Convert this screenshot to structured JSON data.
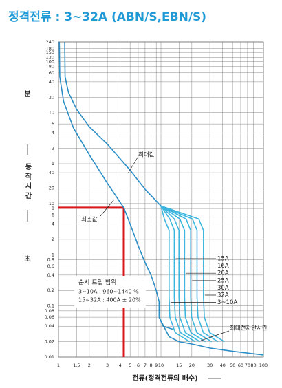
{
  "chart_data": {
    "type": "line",
    "title": "정격전류 : 3~32A (ABN/S,EBN/S)",
    "x_label": "전류(정격전류의 배수)",
    "side_labels": {
      "minutes": "분",
      "time": "동작시간",
      "seconds": "초"
    },
    "trip_box": {
      "title": "순시 트립 범위",
      "lines": [
        "3~10A : 960~1440 %",
        "15~32A : 400A ± 20%"
      ]
    },
    "log_x": true,
    "log_y": true,
    "grid": true,
    "xlim": [
      1,
      100
    ],
    "ylim": [
      0.01,
      14400
    ],
    "xticks": [
      1,
      1.5,
      2,
      3,
      4,
      5,
      6,
      7,
      8,
      9,
      10,
      15,
      20,
      30,
      40,
      50,
      60,
      70,
      80,
      100
    ],
    "yticks": [
      {
        "value": 14400,
        "label": "240"
      },
      {
        "value": 10800,
        "label": "180"
      },
      {
        "value": 9000,
        "label": "150"
      },
      {
        "value": 7200,
        "label": "120"
      },
      {
        "value": 6000,
        "label": "100"
      },
      {
        "value": 4800,
        "label": "80"
      },
      {
        "value": 3600,
        "label": "60"
      },
      {
        "value": 2400,
        "label": "40"
      },
      {
        "value": 1200,
        "label": "20"
      },
      {
        "value": 600,
        "label": "10"
      },
      {
        "value": 360,
        "label": "6"
      },
      {
        "value": 240,
        "label": "4"
      },
      {
        "value": 120,
        "label": "2"
      },
      {
        "value": 60,
        "label": "1"
      },
      40,
      20,
      10,
      8,
      6,
      4,
      2,
      1,
      0.8,
      0.6,
      0.4,
      0.2,
      0.1,
      0.08,
      0.06,
      0.04,
      0.02,
      0.01
    ],
    "highlight": {
      "x": 4.34,
      "y": 8.3,
      "color": "#d7191c"
    },
    "series": [
      {
        "name": "최대값",
        "color": "#2b8ec6",
        "x": [
          1.15,
          1.16,
          1.25,
          1.5,
          2,
          3,
          5,
          7,
          10
        ],
        "values": [
          14400,
          3000,
          1500,
          700,
          316,
          145,
          45,
          19,
          9
        ]
      },
      {
        "name": "최소값",
        "color": "#2b8ec6",
        "x": [
          1.02,
          1.03,
          1.12,
          1.4,
          2,
          3,
          4.34,
          5,
          6,
          7,
          8,
          9,
          9.6,
          9.6,
          10.5,
          13
        ],
        "values": [
          14400,
          3000,
          1000,
          300,
          90,
          25,
          8.3,
          4,
          1.5,
          0.7,
          0.4,
          0.2,
          0.12,
          0.06,
          0.04,
          0.035
        ]
      },
      {
        "name": "최대전차단시간",
        "color": "#2b8ec6",
        "x": [
          9.6,
          12,
          15,
          20,
          30,
          50,
          100
        ],
        "values": [
          0.06,
          0.025,
          0.02,
          0.018,
          0.015,
          0.013,
          0.011
        ]
      },
      {
        "name": "15A",
        "color": "#3cb6df",
        "x": [
          10,
          12.2,
          13.5,
          13.5,
          13.8,
          15.5,
          21.6
        ],
        "values": [
          9,
          5,
          3,
          0.15,
          0.06,
          0.03,
          0.02
        ]
      },
      {
        "name": "16A",
        "color": "#3cb6df",
        "x": [
          10,
          13.5,
          15,
          15,
          15.3,
          17.3,
          24
        ],
        "values": [
          9,
          5,
          3,
          0.15,
          0.06,
          0.03,
          0.02
        ]
      },
      {
        "name": "20A",
        "color": "#3cb6df",
        "x": [
          10,
          15.3,
          17,
          17,
          17.3,
          19.6,
          27.2
        ],
        "values": [
          9,
          5,
          3,
          0.15,
          0.06,
          0.03,
          0.02
        ]
      },
      {
        "name": "25A",
        "color": "#3cb6df",
        "x": [
          10,
          17.6,
          19.5,
          19.5,
          19.9,
          22.4,
          31.2
        ],
        "values": [
          9,
          5,
          3,
          0.15,
          0.06,
          0.03,
          0.02
        ]
      },
      {
        "name": "30A",
        "color": "#3cb6df",
        "x": [
          10,
          20.3,
          22.5,
          22.5,
          23,
          25.9,
          36
        ],
        "values": [
          9,
          5,
          3,
          0.15,
          0.06,
          0.03,
          0.02
        ]
      },
      {
        "name": "32A",
        "color": "#3cb6df",
        "x": [
          10,
          23.4,
          26,
          26,
          26.5,
          29.9,
          41.6
        ],
        "values": [
          9,
          5,
          3,
          0.15,
          0.06,
          0.03,
          0.02
        ]
      },
      {
        "name": "3~10A",
        "color": "#3cb6df",
        "x": [
          10,
          10.8,
          12,
          12,
          12.2,
          13.8,
          19
        ],
        "values": [
          9,
          5,
          3,
          0.15,
          0.06,
          0.03,
          0.02
        ]
      }
    ]
  }
}
